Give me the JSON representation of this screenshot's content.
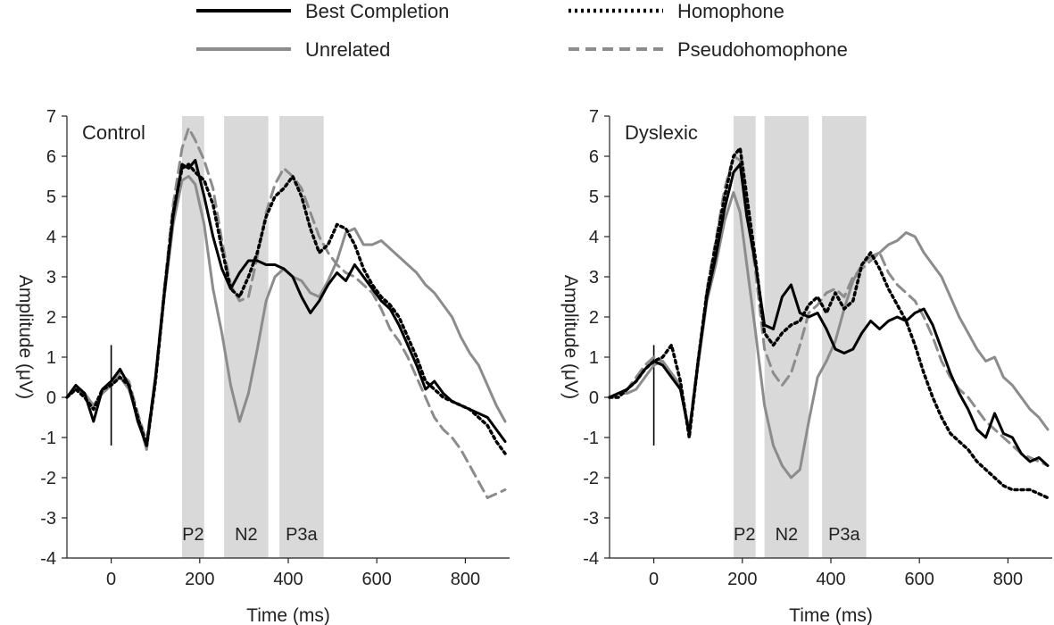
{
  "styles": {
    "best": {
      "color": "#000000",
      "dash": "",
      "width": 3
    },
    "unrelated": {
      "color": "#8c8c8c",
      "dash": "",
      "width": 3
    },
    "homophone": {
      "color": "#000000",
      "dash": "3 4",
      "width": 3.5
    },
    "pseudo": {
      "color": "#8c8c8c",
      "dash": "12 7",
      "width": 3
    },
    "window_fill": "#d9d9d9"
  },
  "legend": [
    {
      "key": "best",
      "label": "Best Completion"
    },
    {
      "key": "homophone",
      "label": "Homophone"
    },
    {
      "key": "unrelated",
      "label": "Unrelated"
    },
    {
      "key": "pseudo",
      "label": "Pseudohomophone"
    }
  ],
  "chart_data": [
    {
      "type": "line",
      "title": "Control",
      "xlabel": "Time (ms)",
      "ylabel": "Amplitude (μV)",
      "xlim": [
        -100,
        900
      ],
      "ylim": [
        -4,
        7
      ],
      "xticks": [
        0,
        200,
        400,
        600,
        800
      ],
      "yticks": [
        -4,
        -3,
        -2,
        -1,
        0,
        1,
        2,
        3,
        4,
        5,
        6,
        7
      ],
      "onset_marker": {
        "x": 0,
        "y_range": [
          -1.2,
          1.3
        ]
      },
      "windows": [
        {
          "label": "P2",
          "start": 160,
          "end": 210
        },
        {
          "label": "N2",
          "start": 255,
          "end": 355
        },
        {
          "label": "P3a",
          "start": 380,
          "end": 480
        }
      ],
      "series": [
        {
          "key": "best",
          "name": "Best Completion",
          "x": [
            -100,
            -80,
            -60,
            -40,
            -20,
            0,
            20,
            40,
            60,
            80,
            100,
            120,
            140,
            160,
            175,
            190,
            210,
            230,
            250,
            270,
            290,
            310,
            330,
            350,
            370,
            390,
            410,
            430,
            450,
            470,
            490,
            510,
            530,
            550,
            570,
            590,
            610,
            630,
            650,
            670,
            690,
            710,
            730,
            750,
            770,
            790,
            810,
            830,
            850,
            870,
            890
          ],
          "y": [
            0,
            0.3,
            0.1,
            -0.6,
            0.2,
            0.4,
            0.7,
            0.3,
            -0.6,
            -1.2,
            0.5,
            2.6,
            4.5,
            5.8,
            5.7,
            5.9,
            5.0,
            4.0,
            3.2,
            2.7,
            3.1,
            3.4,
            3.4,
            3.3,
            3.3,
            3.2,
            3.0,
            2.5,
            2.1,
            2.4,
            2.8,
            3.1,
            2.9,
            3.3,
            3.0,
            2.7,
            2.4,
            2.2,
            1.8,
            1.3,
            0.8,
            0.2,
            0.4,
            0.1,
            -0.1,
            -0.2,
            -0.3,
            -0.4,
            -0.5,
            -0.8,
            -1.1
          ]
        },
        {
          "key": "unrelated",
          "name": "Unrelated",
          "x": [
            -100,
            -80,
            -60,
            -40,
            -20,
            0,
            20,
            40,
            60,
            80,
            100,
            120,
            140,
            160,
            175,
            190,
            210,
            230,
            250,
            270,
            290,
            310,
            330,
            350,
            370,
            390,
            410,
            430,
            450,
            470,
            490,
            510,
            530,
            550,
            570,
            590,
            610,
            630,
            650,
            670,
            690,
            710,
            730,
            750,
            770,
            790,
            810,
            830,
            850,
            870,
            890
          ],
          "y": [
            0,
            0.2,
            0.1,
            -0.2,
            0.1,
            0.3,
            0.5,
            0.2,
            -0.5,
            -1.3,
            0.4,
            2.5,
            4.3,
            5.4,
            5.5,
            5.3,
            4.3,
            2.7,
            1.6,
            0.3,
            -0.6,
            0.1,
            1.2,
            2.4,
            3.0,
            3.2,
            3.0,
            2.9,
            2.6,
            2.5,
            2.9,
            3.4,
            4.1,
            4.2,
            3.8,
            3.8,
            3.9,
            3.7,
            3.5,
            3.3,
            3.1,
            2.8,
            2.6,
            2.3,
            2.0,
            1.5,
            1.1,
            0.8,
            0.3,
            -0.2,
            -0.6
          ]
        },
        {
          "key": "homophone",
          "name": "Homophone",
          "x": [
            -100,
            -80,
            -60,
            -40,
            -20,
            0,
            20,
            40,
            60,
            80,
            100,
            120,
            140,
            160,
            175,
            190,
            210,
            230,
            250,
            270,
            290,
            310,
            330,
            350,
            370,
            390,
            410,
            430,
            450,
            470,
            490,
            510,
            530,
            550,
            570,
            590,
            610,
            630,
            650,
            670,
            690,
            710,
            730,
            750,
            770,
            790,
            810,
            830,
            850,
            870,
            890
          ],
          "y": [
            0,
            0.2,
            0,
            -0.3,
            0.2,
            0.3,
            0.5,
            0.3,
            -0.5,
            -1.2,
            0.4,
            2.6,
            4.6,
            5.7,
            5.8,
            5.6,
            5.4,
            4.8,
            3.7,
            2.7,
            2.5,
            3.0,
            3.6,
            4.5,
            5.0,
            5.2,
            5.5,
            5.0,
            4.2,
            3.6,
            3.8,
            4.3,
            4.2,
            3.8,
            3.2,
            2.8,
            2.5,
            2.3,
            2.0,
            1.5,
            1.0,
            0.4,
            0.2,
            0,
            -0.1,
            -0.2,
            -0.3,
            -0.5,
            -0.7,
            -1.1,
            -1.4
          ]
        },
        {
          "key": "pseudo",
          "name": "Pseudohomophone",
          "x": [
            -100,
            -80,
            -60,
            -40,
            -20,
            0,
            20,
            40,
            60,
            80,
            100,
            120,
            140,
            160,
            175,
            190,
            210,
            230,
            250,
            270,
            290,
            310,
            330,
            350,
            370,
            390,
            410,
            430,
            450,
            470,
            490,
            510,
            530,
            550,
            570,
            590,
            610,
            630,
            650,
            670,
            690,
            710,
            730,
            750,
            770,
            790,
            810,
            830,
            850,
            870,
            890
          ],
          "y": [
            0,
            0.2,
            0.1,
            -0.2,
            0.1,
            0.3,
            0.6,
            0.4,
            -0.4,
            -1.1,
            0.5,
            2.7,
            4.8,
            6.2,
            6.7,
            6.4,
            5.9,
            5.2,
            3.9,
            2.8,
            2.4,
            2.5,
            3.5,
            4.6,
            5.3,
            5.7,
            5.5,
            5.2,
            4.6,
            4.0,
            3.6,
            3.3,
            3.1,
            3.0,
            2.8,
            2.6,
            2.2,
            1.7,
            1.4,
            1.0,
            0.5,
            0,
            -0.5,
            -0.8,
            -1.0,
            -1.3,
            -1.7,
            -2.1,
            -2.5,
            -2.4,
            -2.3
          ]
        }
      ]
    },
    {
      "type": "line",
      "title": "Dyslexic",
      "xlabel": "Time (ms)",
      "ylabel": "Amplitude (μV)",
      "xlim": [
        -100,
        900
      ],
      "ylim": [
        -4,
        7
      ],
      "xticks": [
        0,
        200,
        400,
        600,
        800
      ],
      "yticks": [
        -4,
        -3,
        -2,
        -1,
        0,
        1,
        2,
        3,
        4,
        5,
        6,
        7
      ],
      "onset_marker": {
        "x": 0,
        "y_range": [
          -1.2,
          1.3
        ]
      },
      "windows": [
        {
          "label": "P2",
          "start": 180,
          "end": 230
        },
        {
          "label": "N2",
          "start": 250,
          "end": 350
        },
        {
          "label": "P3a",
          "start": 380,
          "end": 480
        }
      ],
      "series": [
        {
          "key": "best",
          "name": "Best Completion",
          "x": [
            -100,
            -80,
            -60,
            -40,
            -20,
            0,
            20,
            40,
            60,
            80,
            100,
            120,
            140,
            160,
            180,
            195,
            210,
            230,
            250,
            270,
            290,
            310,
            330,
            350,
            370,
            390,
            410,
            430,
            450,
            470,
            490,
            510,
            530,
            550,
            570,
            590,
            610,
            630,
            650,
            670,
            690,
            710,
            730,
            750,
            770,
            790,
            810,
            830,
            850,
            870,
            890
          ],
          "y": [
            0,
            0.1,
            0.2,
            0.4,
            0.7,
            0.9,
            0.8,
            0.5,
            0.2,
            -0.9,
            0.9,
            2.5,
            3.5,
            4.7,
            5.6,
            5.8,
            4.5,
            3.3,
            1.8,
            1.7,
            2.5,
            2.8,
            2.1,
            2.0,
            2.1,
            1.7,
            1.2,
            1.1,
            1.2,
            1.6,
            1.9,
            1.7,
            1.9,
            2.0,
            1.9,
            2.1,
            2.2,
            1.8,
            1.2,
            0.6,
            0.1,
            -0.3,
            -0.8,
            -1.0,
            -0.4,
            -0.9,
            -1.0,
            -1.4,
            -1.6,
            -1.5,
            -1.7
          ]
        },
        {
          "key": "unrelated",
          "name": "Unrelated",
          "x": [
            -100,
            -80,
            -60,
            -40,
            -20,
            0,
            20,
            40,
            60,
            80,
            100,
            120,
            140,
            160,
            180,
            195,
            210,
            230,
            250,
            270,
            290,
            310,
            330,
            350,
            370,
            390,
            410,
            430,
            450,
            470,
            490,
            510,
            530,
            550,
            570,
            590,
            610,
            630,
            650,
            670,
            690,
            710,
            730,
            750,
            770,
            790,
            810,
            830,
            850,
            870,
            890
          ],
          "y": [
            0,
            0.1,
            0.1,
            0.2,
            0.5,
            0.8,
            0.9,
            0.6,
            0.3,
            -0.9,
            0.8,
            2.4,
            3.3,
            4.4,
            5.1,
            4.6,
            3.3,
            1.6,
            -0.2,
            -1.2,
            -1.7,
            -2.0,
            -1.8,
            -0.6,
            0.5,
            0.9,
            1.4,
            2.2,
            2.9,
            3.3,
            3.5,
            3.6,
            3.8,
            3.9,
            4.1,
            4.0,
            3.6,
            3.3,
            3.0,
            2.5,
            2.0,
            1.6,
            1.2,
            0.9,
            1.0,
            0.5,
            0.3,
            0,
            -0.3,
            -0.5,
            -0.8
          ]
        },
        {
          "key": "homophone",
          "name": "Homophone",
          "x": [
            -100,
            -80,
            -60,
            -40,
            -20,
            0,
            20,
            40,
            60,
            80,
            100,
            120,
            140,
            160,
            180,
            195,
            210,
            230,
            250,
            270,
            290,
            310,
            330,
            350,
            370,
            390,
            410,
            430,
            450,
            470,
            490,
            510,
            530,
            550,
            570,
            590,
            610,
            630,
            650,
            670,
            690,
            710,
            730,
            750,
            770,
            790,
            810,
            830,
            850,
            870,
            890
          ],
          "y": [
            0,
            0,
            0.2,
            0.4,
            0.7,
            0.9,
            1.0,
            1.3,
            0.4,
            -1.0,
            0.9,
            2.6,
            3.8,
            5.0,
            6.0,
            6.2,
            5.0,
            3.4,
            1.6,
            1.3,
            1.6,
            1.8,
            1.9,
            2.3,
            2.5,
            2.1,
            2.6,
            2.2,
            2.4,
            3.3,
            3.6,
            3.2,
            2.7,
            2.3,
            1.9,
            1.3,
            0.6,
            0,
            -0.5,
            -0.9,
            -1.1,
            -1.3,
            -1.6,
            -1.8,
            -2.0,
            -2.2,
            -2.3,
            -2.3,
            -2.3,
            -2.4,
            -2.5
          ]
        },
        {
          "key": "pseudo",
          "name": "Pseudohomophone",
          "x": [
            -100,
            -80,
            -60,
            -40,
            -20,
            0,
            20,
            40,
            60,
            80,
            100,
            120,
            140,
            160,
            180,
            195,
            210,
            230,
            250,
            270,
            290,
            310,
            330,
            350,
            370,
            390,
            410,
            430,
            450,
            470,
            490,
            510,
            530,
            550,
            570,
            590,
            610,
            630,
            650,
            670,
            690,
            710,
            730,
            750,
            770,
            790,
            810,
            830,
            850,
            870,
            890
          ],
          "y": [
            0,
            0.1,
            0.2,
            0.5,
            0.8,
            1.0,
            0.9,
            0.6,
            0.2,
            -0.8,
            0.9,
            2.7,
            3.9,
            5.2,
            6.0,
            5.9,
            4.7,
            3.1,
            1.2,
            0.6,
            0.3,
            0.6,
            1.3,
            2.1,
            2.3,
            2.6,
            2.7,
            2.5,
            3.0,
            3.2,
            3.4,
            3.6,
            3.1,
            2.8,
            2.6,
            2.4,
            2.0,
            1.5,
            0.9,
            0.5,
            0.2,
            0,
            -0.3,
            -0.6,
            -0.8,
            -1.0,
            -1.2,
            -1.4,
            -1.5,
            -1.6,
            -1.7
          ]
        }
      ]
    }
  ]
}
